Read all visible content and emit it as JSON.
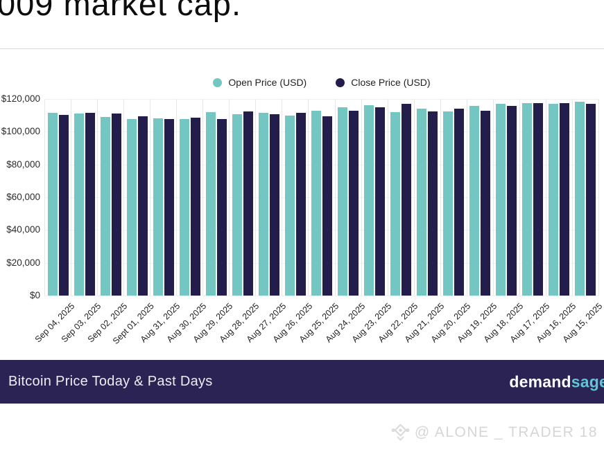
{
  "heading_fragment": "009 market cap.",
  "legend": {
    "open_label": "Open Price (USD)",
    "close_label": "Close Price (USD)"
  },
  "colors": {
    "open_bar": "#73c6c2",
    "close_bar": "#221d4a",
    "banner_bg": "#2a2353",
    "logo_accent": "#5dc7d5",
    "watermark": "#d6d6d6"
  },
  "chart_data": {
    "type": "bar",
    "title": "Bitcoin Price Today & Past Days",
    "categories": [
      "Sep 04, 2025",
      "Sep 03, 2025",
      "Sep 02, 2025",
      "Sept 01, 2025",
      "Aug 31, 2025",
      "Aug 30, 2025",
      "Aug 29, 2025",
      "Aug 28, 2025",
      "Aug 27, 2025",
      "Aug 26, 2025",
      "Aug 25, 2025",
      "Aug 24, 2025",
      "Aug 23, 2025",
      "Aug 22, 2025",
      "Aug 21, 2025",
      "Aug 20, 2025",
      "Aug 19, 2025",
      "Aug 18, 2025",
      "Aug 17, 2025",
      "Aug 16, 2025",
      "Aug 15, 2025"
    ],
    "series": [
      {
        "name": "Open Price (USD)",
        "color": "#73c6c2",
        "values": [
          111400,
          111000,
          108900,
          107900,
          108300,
          107900,
          112100,
          110700,
          111400,
          109700,
          112800,
          115000,
          116300,
          112100,
          113900,
          112500,
          115600,
          117000,
          117300,
          117000,
          118200
        ]
      },
      {
        "name": "Close Price (USD)",
        "color": "#221d4a",
        "values": [
          110300,
          111400,
          111100,
          109300,
          107600,
          108600,
          107900,
          112400,
          110700,
          111700,
          109400,
          112800,
          114900,
          117000,
          112400,
          113900,
          112800,
          115900,
          117300,
          117300,
          117000
        ]
      }
    ],
    "ylim": [
      0,
      120000
    ],
    "yticks": [
      "$120,000",
      "$100,000",
      "$80,000",
      "$60,000",
      "$40,000",
      "$20,000",
      "$0"
    ],
    "xlabel": "",
    "ylabel": "",
    "grid": true,
    "legend_position": "top-center",
    "x_tick_rotation": -45
  },
  "banner": {
    "title": "Bitcoin Price Today & Past Days",
    "logo_primary": "demand",
    "logo_accent": "sage"
  },
  "watermark": {
    "icon_name": "diamond-ornament-icon",
    "text": "@ ALONE _ TRADER 18"
  }
}
